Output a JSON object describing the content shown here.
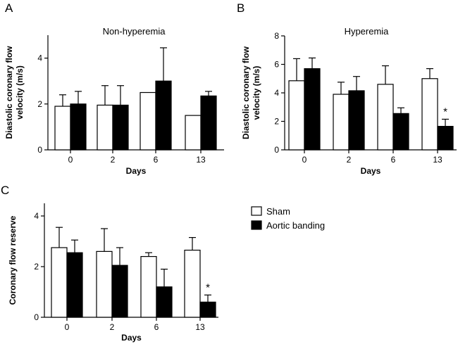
{
  "legend": {
    "items": [
      {
        "label": "Sham",
        "color": "#ffffff"
      },
      {
        "label": "Aortic banding",
        "color": "#000000"
      }
    ]
  },
  "chart_data": [
    {
      "panel": "A",
      "type": "bar",
      "title": "Non-hyperemia",
      "xlabel": "Days",
      "ylabel": "Diastolic coronary flow velocity (m/s)",
      "ylabel_lines": [
        "Diastolic coronary flow",
        "velocity (m/s)"
      ],
      "categories": [
        "0",
        "2",
        "6",
        "13"
      ],
      "ylim": [
        0,
        5
      ],
      "yticks": [
        0,
        2,
        4
      ],
      "series": [
        {
          "name": "Sham",
          "color": "#ffffff",
          "values": [
            1.9,
            1.95,
            2.5,
            1.5
          ],
          "errors": [
            0.5,
            0.85,
            0,
            0
          ]
        },
        {
          "name": "Aortic banding",
          "color": "#000000",
          "values": [
            2.0,
            1.95,
            3.0,
            2.35
          ],
          "errors": [
            0.55,
            0.85,
            1.45,
            0.2
          ]
        }
      ],
      "annotations": []
    },
    {
      "panel": "B",
      "type": "bar",
      "title": "Hyperemia",
      "xlabel": "Days",
      "ylabel": "Diastolic coronary flow velocity (m/s)",
      "ylabel_lines": [
        "Diastolic coronary flow",
        "velocity (m/s)"
      ],
      "categories": [
        "0",
        "2",
        "6",
        "13"
      ],
      "ylim": [
        0,
        8
      ],
      "yticks": [
        0,
        2,
        4,
        6,
        8
      ],
      "series": [
        {
          "name": "Sham",
          "color": "#ffffff",
          "values": [
            4.85,
            3.9,
            4.6,
            5.0
          ],
          "errors": [
            1.55,
            0.85,
            1.3,
            0.7
          ]
        },
        {
          "name": "Aortic banding",
          "color": "#000000",
          "values": [
            5.7,
            4.15,
            2.55,
            1.65
          ],
          "errors": [
            0.75,
            1.0,
            0.4,
            0.5
          ]
        }
      ],
      "annotations": [
        {
          "text": "*",
          "category_index": 3,
          "series_index": 1
        }
      ]
    },
    {
      "panel": "C",
      "type": "bar",
      "title": "",
      "xlabel": "Days",
      "ylabel": "Coronary flow reserve",
      "ylabel_lines": [
        "Coronary flow reserve"
      ],
      "categories": [
        "0",
        "2",
        "6",
        "13"
      ],
      "ylim": [
        0,
        4.5
      ],
      "yticks": [
        0,
        2,
        4
      ],
      "series": [
        {
          "name": "Sham",
          "color": "#ffffff",
          "values": [
            2.75,
            2.6,
            2.4,
            2.65
          ],
          "errors": [
            0.8,
            0.9,
            0.15,
            0.5
          ]
        },
        {
          "name": "Aortic banding",
          "color": "#000000",
          "values": [
            2.55,
            2.05,
            1.2,
            0.6
          ],
          "errors": [
            0.5,
            0.7,
            0.7,
            0.28
          ]
        }
      ],
      "annotations": [
        {
          "text": "*",
          "category_index": 3,
          "series_index": 1
        }
      ]
    }
  ]
}
